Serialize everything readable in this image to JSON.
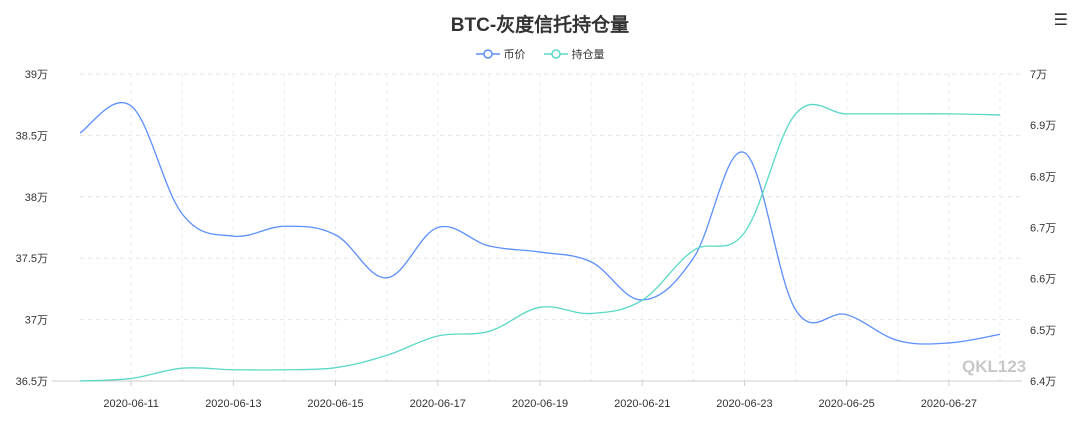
{
  "title": "BTC-灰度信托持仓量",
  "menu_icon": "hamburger-menu-icon",
  "watermark": "QKL123",
  "colors": {
    "price": "#5b8ff9",
    "holdings": "#5ad8c6"
  },
  "chart_data": {
    "type": "line",
    "title": "BTC-灰度信托持仓量",
    "x": [
      "2020-06-10",
      "2020-06-11",
      "2020-06-12",
      "2020-06-13",
      "2020-06-14",
      "2020-06-15",
      "2020-06-16",
      "2020-06-17",
      "2020-06-18",
      "2020-06-19",
      "2020-06-20",
      "2020-06-21",
      "2020-06-22",
      "2020-06-23",
      "2020-06-24",
      "2020-06-25",
      "2020-06-26",
      "2020-06-27",
      "2020-06-28"
    ],
    "x_tick_labels": [
      "2020-06-11",
      "2020-06-13",
      "2020-06-15",
      "2020-06-17",
      "2020-06-19",
      "2020-06-21",
      "2020-06-23",
      "2020-06-25",
      "2020-06-27"
    ],
    "left_axis": {
      "ylim": [
        365000,
        390000
      ],
      "ticks": [
        "36.5万",
        "37万",
        "37.5万",
        "38万",
        "38.5万",
        "39万"
      ]
    },
    "right_axis": {
      "ylim": [
        64000,
        70000
      ],
      "ticks": [
        "6.4万",
        "6.5万",
        "6.6万",
        "6.7万",
        "6.8万",
        "6.9万",
        "7万"
      ]
    },
    "legend_position": "top-center",
    "grid": true,
    "series": [
      {
        "name": "币价",
        "axis": "left",
        "values": [
          385200,
          387400,
          378600,
          376800,
          377600,
          376900,
          373400,
          377500,
          376000,
          375500,
          374700,
          371600,
          375000,
          383600,
          370800,
          370400,
          368300,
          368100,
          368800
        ]
      },
      {
        "name": "持仓量",
        "axis": "right",
        "values": [
          64000,
          64050,
          64250,
          64220,
          64220,
          64260,
          64500,
          64880,
          64970,
          65440,
          65320,
          65580,
          66550,
          66900,
          69220,
          69220,
          69220,
          69220,
          69200
        ]
      }
    ]
  },
  "legend": {
    "series_0_label": "币价",
    "series_1_label": "持仓量"
  }
}
